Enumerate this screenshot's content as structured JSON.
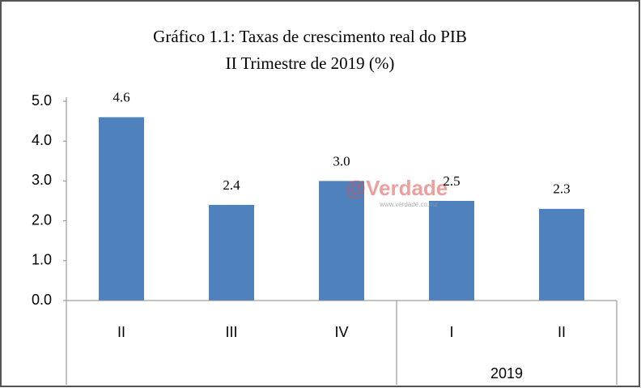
{
  "chart_data": {
    "type": "bar",
    "title": "Gráfico  1.1: Taxas de crescimento real do PIB",
    "subtitle": "II Trimestre de 2019 (%)",
    "categories": [
      "II",
      "III",
      "IV",
      "I",
      "II"
    ],
    "category_groups": [
      null,
      null,
      null,
      "2019",
      "2019"
    ],
    "values": [
      4.6,
      2.4,
      3.0,
      2.5,
      2.3
    ],
    "value_labels": [
      "4.6",
      "2.4",
      "3.0",
      "2.5",
      "2.3"
    ],
    "color": "#4f81bd",
    "ylim": [
      0,
      5
    ],
    "yticks": [
      {
        "value": 0,
        "label": "0.0"
      },
      {
        "value": 1,
        "label": "1.0"
      },
      {
        "value": 2,
        "label": "2.0"
      },
      {
        "value": 3,
        "label": "3.0"
      },
      {
        "value": 4,
        "label": "4.0"
      },
      {
        "value": 5,
        "label": "5.0"
      }
    ],
    "grid": false,
    "watermark": "@Verdade",
    "watermark_url": "www.verdade.co.mz"
  }
}
